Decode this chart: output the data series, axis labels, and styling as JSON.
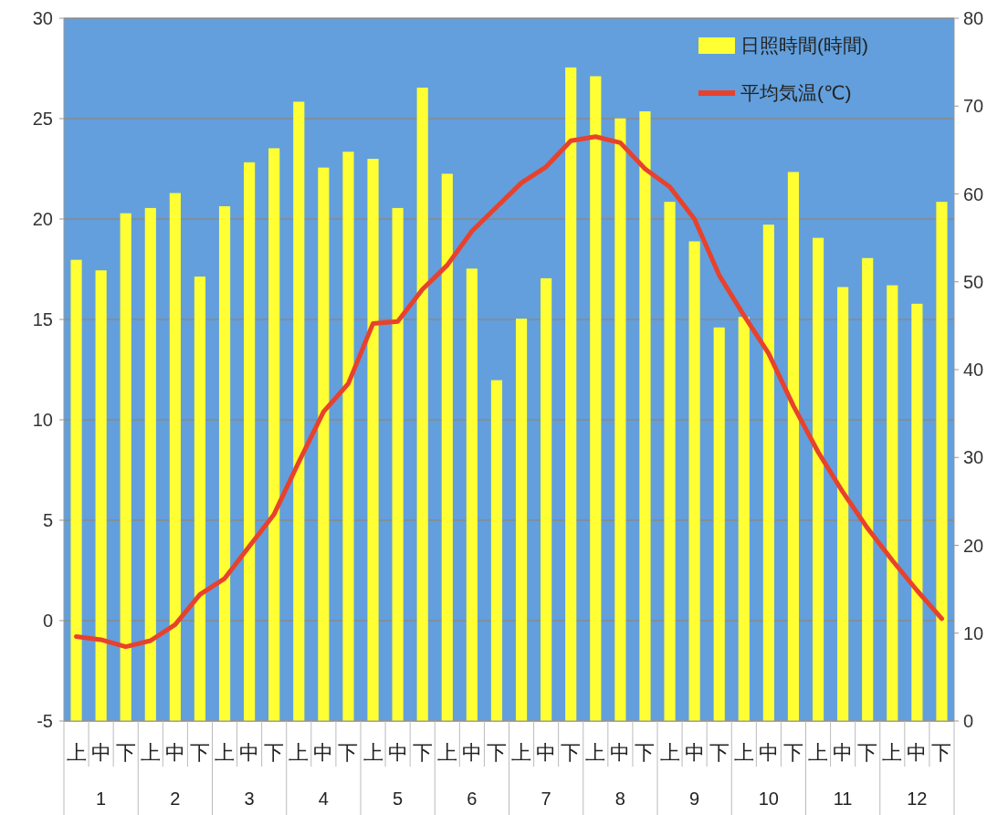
{
  "chart_data": {
    "type": "bar",
    "categories": [
      "上",
      "中",
      "下",
      "上",
      "中",
      "下",
      "上",
      "中",
      "下",
      "上",
      "中",
      "下",
      "上",
      "中",
      "下",
      "上",
      "中",
      "下",
      "上",
      "中",
      "下",
      "上",
      "中",
      "下",
      "上",
      "中",
      "下",
      "上",
      "中",
      "下",
      "上",
      "中",
      "下",
      "上",
      "中",
      "下"
    ],
    "annotations": [
      "1",
      "2",
      "3",
      "4",
      "5",
      "6",
      "7",
      "8",
      "9",
      "10",
      "11",
      "12"
    ],
    "series": [
      {
        "name": "日照時間(時間)",
        "axis": "y2",
        "color": "#ffff33",
        "values": [
          52.5,
          51.3,
          57.8,
          58.4,
          60.1,
          50.6,
          58.6,
          63.6,
          65.2,
          70.5,
          63.0,
          64.8,
          64.0,
          58.4,
          72.1,
          62.3,
          51.5,
          38.8,
          45.8,
          50.4,
          74.4,
          73.4,
          68.6,
          69.4,
          59.1,
          54.6,
          44.8,
          46.0,
          56.5,
          62.5,
          55.0,
          49.4,
          52.7,
          49.6,
          47.5,
          59.1
        ]
      },
      {
        "name": "平均気温(℃)",
        "type": "line",
        "color": "#e8412c",
        "values": [
          -0.8,
          -0.95,
          -1.3,
          -1.0,
          -0.2,
          1.3,
          2.1,
          3.7,
          5.3,
          7.9,
          10.4,
          11.8,
          14.8,
          14.9,
          16.5,
          17.7,
          19.4,
          20.6,
          21.8,
          22.6,
          23.9,
          24.1,
          23.8,
          22.5,
          21.6,
          20.0,
          17.2,
          15.2,
          13.3,
          10.7,
          8.4,
          6.4,
          4.6,
          3.0,
          1.5,
          0.1
        ]
      }
    ],
    "ylim": [
      -5,
      30
    ],
    "yticks": [
      -5,
      0,
      5,
      10,
      15,
      20,
      25,
      30
    ],
    "y2lim": [
      0,
      80
    ],
    "y2ticks": [
      0,
      10,
      20,
      30,
      40,
      50,
      60,
      70,
      80
    ],
    "grid": "y",
    "legend": "top right",
    "marker": "none",
    "line_style": "solid"
  }
}
